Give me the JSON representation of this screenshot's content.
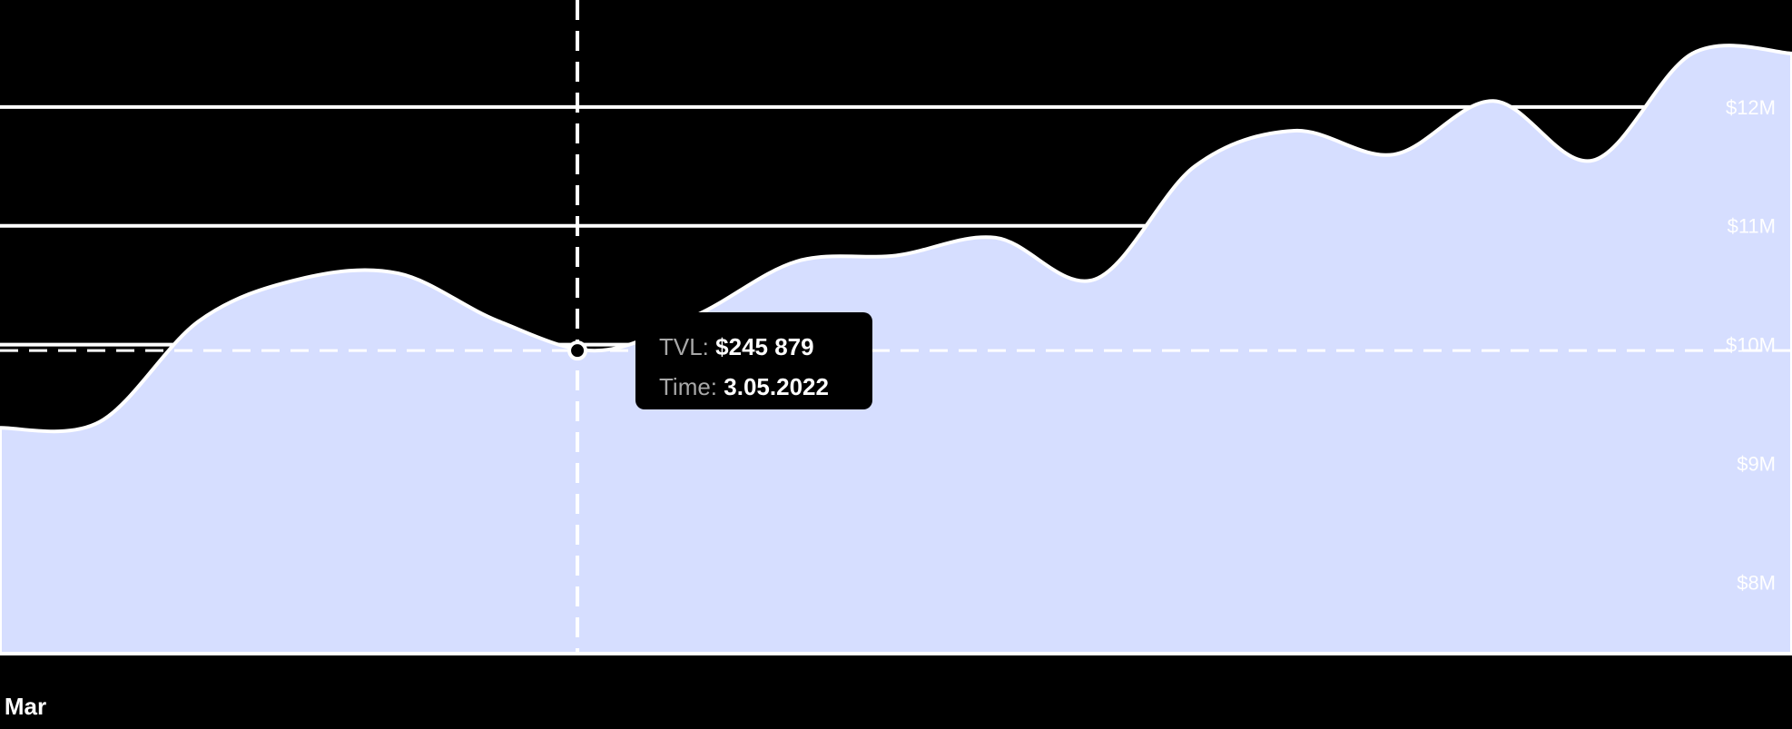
{
  "chart_data": {
    "type": "area",
    "title": "",
    "xlabel": "",
    "ylabel": "",
    "x": [
      0,
      1,
      2,
      3,
      4,
      5,
      6,
      7,
      8,
      9,
      10,
      11,
      12,
      13,
      14,
      15,
      16,
      17,
      18
    ],
    "x_tick_labels": [
      "Mar",
      "",
      "",
      "",
      "",
      ""
    ],
    "series": [
      {
        "values": [
          9.3,
          9.35,
          10.2,
          10.55,
          10.6,
          10.2,
          9.95,
          10.25,
          10.7,
          10.75,
          10.9,
          10.55,
          11.5,
          11.8,
          11.6,
          12.05,
          11.55,
          12.45,
          12.45
        ],
        "color": "#d6deff"
      }
    ],
    "y_ticks": [
      "$8M",
      "$9M",
      "$10M",
      "$11M",
      "$12M"
    ],
    "ylim": [
      7.4,
      12.9
    ],
    "grid": true,
    "crosshair": {
      "x": 5.8,
      "y": 9.95
    },
    "tooltip": {
      "tvl_label": "TVL:",
      "tvl_value": "$245 879",
      "time_label": "Time:",
      "time_value": "3.05.2022"
    }
  },
  "colors": {
    "background": "#000000",
    "area_fill": "#d6deff",
    "grid": "#ffffff",
    "tooltip_bg": "#000000"
  }
}
